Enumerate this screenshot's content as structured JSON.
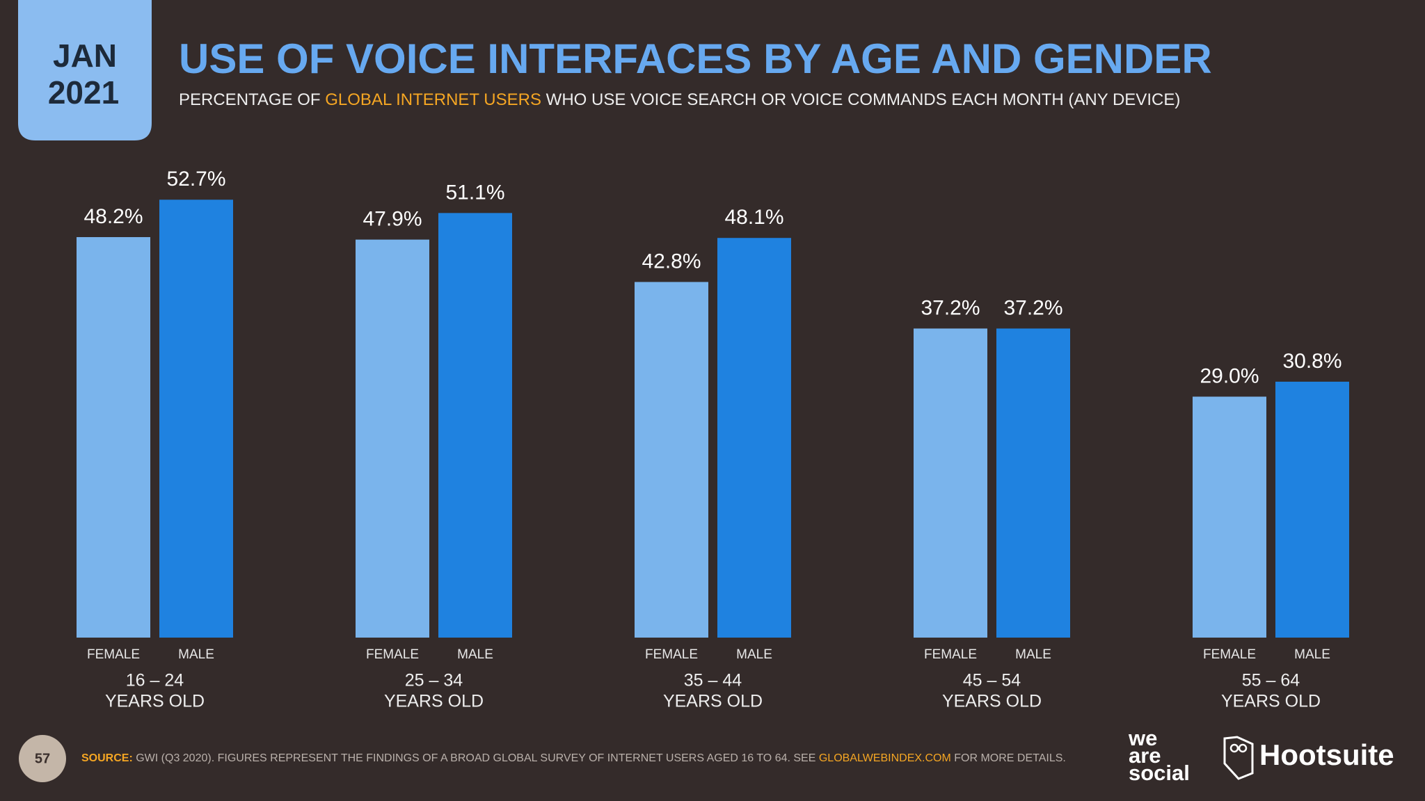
{
  "header": {
    "month": "JAN",
    "year": "2021"
  },
  "chart_data": {
    "type": "bar",
    "title": "USE OF VOICE INTERFACES BY AGE AND GENDER",
    "subtitle": [
      "PERCENTAGE OF ",
      "GLOBAL INTERNET USERS",
      " WHO USE VOICE SEARCH OR VOICE COMMANDS EACH MONTH (ANY DEVICE)"
    ],
    "categories": [
      [
        "16 – 24",
        "YEARS OLD"
      ],
      [
        "25 – 34",
        "YEARS OLD"
      ],
      [
        "35 – 44",
        "YEARS OLD"
      ],
      [
        "45 – 54",
        "YEARS OLD"
      ],
      [
        "55 – 64",
        "YEARS OLD"
      ]
    ],
    "series": [
      {
        "name": "FEMALE",
        "color": "#7ab4ec",
        "values": [
          48.2,
          47.9,
          42.8,
          37.2,
          29.0
        ],
        "value_labels": [
          "48.2%",
          "47.9%",
          "42.8%",
          "37.2%",
          "29.0%"
        ]
      },
      {
        "name": "MALE",
        "color": "#1f82e0",
        "values": [
          52.7,
          51.1,
          48.1,
          37.2,
          30.8
        ],
        "value_labels": [
          "52.7%",
          "51.1%",
          "48.1%",
          "37.2%",
          "30.8%"
        ]
      }
    ],
    "ylim": [
      0,
      60
    ]
  },
  "footer": {
    "page": "57",
    "source": [
      "SOURCE:",
      " GWI (Q3 2020). FIGURES REPRESENT THE FINDINGS OF A BROAD GLOBAL SURVEY OF INTERNET USERS AGED 16 TO 64. SEE ",
      "GLOBALWEBINDEX.COM",
      " FOR MORE DETAILS."
    ],
    "brand_left": [
      "we",
      "are",
      "social"
    ],
    "brand_right": "Hootsuite"
  }
}
